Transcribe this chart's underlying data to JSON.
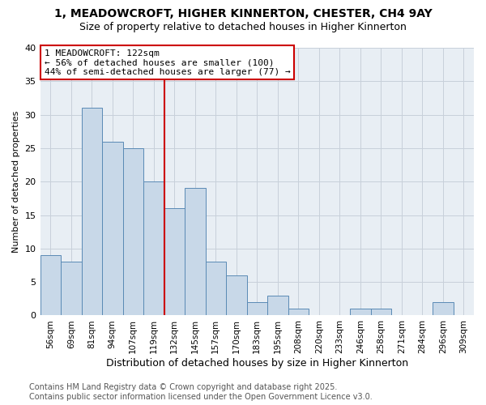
{
  "title1": "1, MEADOWCROFT, HIGHER KINNERTON, CHESTER, CH4 9AY",
  "title2": "Size of property relative to detached houses in Higher Kinnerton",
  "xlabel": "Distribution of detached houses by size in Higher Kinnerton",
  "ylabel": "Number of detached properties",
  "categories": [
    "56sqm",
    "69sqm",
    "81sqm",
    "94sqm",
    "107sqm",
    "119sqm",
    "132sqm",
    "145sqm",
    "157sqm",
    "170sqm",
    "183sqm",
    "195sqm",
    "208sqm",
    "220sqm",
    "233sqm",
    "246sqm",
    "258sqm",
    "271sqm",
    "284sqm",
    "296sqm",
    "309sqm"
  ],
  "values": [
    9,
    8,
    31,
    26,
    25,
    20,
    16,
    19,
    8,
    6,
    2,
    3,
    1,
    0,
    0,
    1,
    1,
    0,
    0,
    2,
    0
  ],
  "bar_color": "#c8d8e8",
  "bar_edge_color": "#5a8ab5",
  "vline_x_index": 5.5,
  "vline_color": "#cc0000",
  "annotation_text": "1 MEADOWCROFT: 122sqm\n← 56% of detached houses are smaller (100)\n44% of semi-detached houses are larger (77) →",
  "annotation_box_color": "#cc0000",
  "ylim": [
    0,
    40
  ],
  "yticks": [
    0,
    5,
    10,
    15,
    20,
    25,
    30,
    35,
    40
  ],
  "grid_color": "#c8d0da",
  "bg_color": "#e8eef4",
  "footer": "Contains HM Land Registry data © Crown copyright and database right 2025.\nContains public sector information licensed under the Open Government Licence v3.0.",
  "title_fontsize": 10,
  "subtitle_fontsize": 9,
  "annot_fontsize": 8,
  "footer_fontsize": 7
}
